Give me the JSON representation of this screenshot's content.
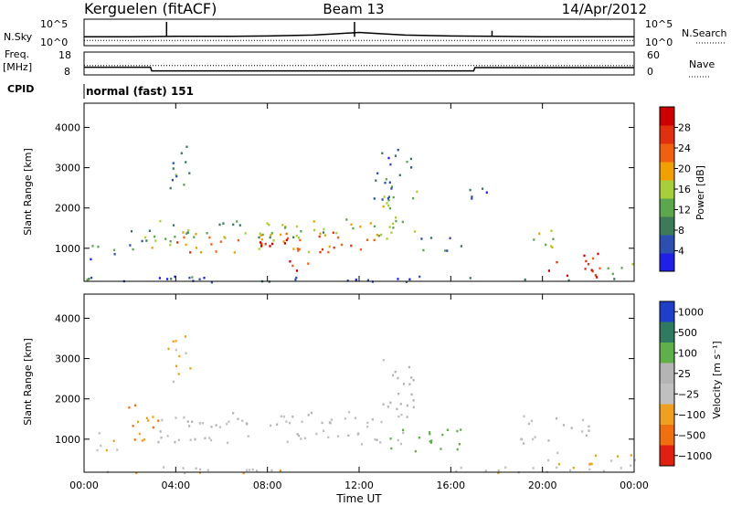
{
  "header": {
    "station": "Kerguelen (fitACF)",
    "beam": "Beam 13",
    "date": "14/Apr/2012"
  },
  "colors": {
    "power_scale": [
      "#1f1fe6",
      "#2d4fb0",
      "#3d7a57",
      "#5ca64e",
      "#a6cf3a",
      "#f0a000",
      "#f06010",
      "#e03010",
      "#cc0000"
    ],
    "velocity_scale": [
      "#1f3fc8",
      "#2f7a60",
      "#5fb04a",
      "#b4b4b4",
      "#c0c0c0",
      "#f0a020",
      "#f07010",
      "#e02010"
    ],
    "groundscatter": "#bebebe"
  },
  "chart_data": [
    {
      "type": "line",
      "panel": "status-nsky-nsearch",
      "left_label": "N.Sky",
      "right_label": "N.Search",
      "left_ticks": [
        "10^5",
        "10^0"
      ],
      "right_ticks": [
        "10^5",
        "10^0"
      ],
      "series": [
        {
          "name": "N.Sky",
          "style": "solid",
          "x": [
            0,
            2,
            4,
            6,
            8,
            10,
            11,
            12,
            13,
            14,
            16,
            18,
            20,
            22,
            24
          ],
          "y": [
            1.6,
            1.6,
            1.7,
            1.7,
            1.8,
            2.0,
            2.3,
            2.6,
            2.3,
            2.0,
            1.8,
            1.7,
            1.6,
            1.6,
            1.6
          ]
        },
        {
          "name": "N.Search",
          "style": "dotted",
          "x": [
            0,
            24
          ],
          "y": [
            0.8,
            0.8
          ]
        }
      ],
      "spikes": [
        {
          "x": 3.6,
          "y": 5
        },
        {
          "x": 11.8,
          "y": 5
        },
        {
          "x": 17.8,
          "y": 3
        }
      ]
    },
    {
      "type": "line",
      "panel": "status-freq-nave",
      "left_label": "Freq.",
      "left_unit": "[MHz]",
      "right_label": "Nave",
      "left_ticks": [
        "18",
        "8"
      ],
      "right_ticks": [
        "60",
        "0"
      ],
      "ylim_left": [
        8,
        18
      ],
      "ylim_right": [
        0,
        60
      ],
      "series": [
        {
          "name": "Freq.",
          "axis": "left",
          "style": "solid",
          "x": [
            0,
            2.9,
            2.95,
            17.0,
            17.05,
            24
          ],
          "y": [
            11.2,
            11.2,
            9.2,
            9.2,
            11.0,
            11.0
          ]
        },
        {
          "name": "Nave",
          "axis": "right",
          "style": "dotted",
          "x": [
            0,
            24
          ],
          "y": [
            25,
            25
          ]
        }
      ]
    },
    {
      "type": "table",
      "panel": "cpid",
      "label": "CPID",
      "value": "normal (fast) 151"
    },
    {
      "type": "heatmap",
      "panel": "power",
      "ylabel": "Slant Range [km]",
      "xlim": [
        0,
        24
      ],
      "ylim": [
        180,
        4600
      ],
      "yticks": [
        1000,
        2000,
        3000,
        4000
      ],
      "colorbar": {
        "label": "Power [dB]",
        "range": [
          0,
          32
        ],
        "ticks": [
          4,
          8,
          12,
          16,
          20,
          24,
          28
        ]
      },
      "regions": [
        {
          "t0": 0.2,
          "t1": 1.6,
          "r0": 750,
          "r1": 1150,
          "v": 7
        },
        {
          "t0": 1.8,
          "t1": 2.9,
          "r0": 900,
          "r1": 1500,
          "v": 10
        },
        {
          "t0": 2.4,
          "t1": 4.6,
          "r0": 950,
          "r1": 1450,
          "v": 15
        },
        {
          "t0": 3.0,
          "t1": 14.0,
          "r0": 1250,
          "r1": 1750,
          "v": 14
        },
        {
          "t0": 4.0,
          "t1": 13.0,
          "r0": 900,
          "r1": 1450,
          "v": 22
        },
        {
          "t0": 6.0,
          "t1": 11.0,
          "r0": 950,
          "r1": 1250,
          "v": 28
        },
        {
          "t0": 8.5,
          "t1": 9.8,
          "r0": 450,
          "r1": 800,
          "v": 26
        },
        {
          "t0": 13.0,
          "t1": 14.5,
          "r0": 1400,
          "r1": 2600,
          "v": 16
        },
        {
          "t0": 12.5,
          "t1": 14.3,
          "r0": 2200,
          "r1": 3500,
          "v": 8
        },
        {
          "t0": 14.5,
          "t1": 16.5,
          "r0": 900,
          "r1": 1300,
          "v": 6
        },
        {
          "t0": 3.5,
          "t1": 4.6,
          "r0": 2400,
          "r1": 3600,
          "v": 10
        },
        {
          "t0": 16.8,
          "t1": 17.6,
          "r0": 1900,
          "r1": 2700,
          "v": 6
        },
        {
          "t0": 19.0,
          "t1": 20.5,
          "r0": 950,
          "r1": 1500,
          "v": 15
        },
        {
          "t0": 20.0,
          "t1": 22.5,
          "r0": 300,
          "r1": 950,
          "v": 26
        },
        {
          "t0": 22.5,
          "t1": 24.0,
          "r0": 300,
          "r1": 650,
          "v": 14
        },
        {
          "t0": 0.0,
          "t1": 24.0,
          "r0": 180,
          "r1": 330,
          "v": 6
        }
      ]
    },
    {
      "type": "heatmap",
      "panel": "velocity",
      "ylabel": "Slant Range [km]",
      "xlabel": "Time UT",
      "xlim": [
        0,
        24
      ],
      "ylim": [
        180,
        4600
      ],
      "xticks": [
        "00:00",
        "04:00",
        "08:00",
        "12:00",
        "16:00",
        "20:00",
        "00:00"
      ],
      "yticks": [
        1000,
        2000,
        3000,
        4000
      ],
      "colorbar": {
        "label": "Velocity [m s⁻¹]",
        "ticks": [
          "1000",
          "500",
          "100",
          "25",
          "−25",
          "−100",
          "−500",
          "−1000"
        ]
      },
      "regions": [
        {
          "t0": 0.2,
          "t1": 1.6,
          "r0": 700,
          "r1": 1200,
          "v": -40
        },
        {
          "t0": 1.8,
          "t1": 3.2,
          "r0": 800,
          "r1": 1900,
          "v": -300
        },
        {
          "t0": 3.0,
          "t1": 14.0,
          "r0": 900,
          "r1": 1700,
          "v": 0
        },
        {
          "t0": 13.2,
          "t1": 16.5,
          "r0": 700,
          "r1": 1300,
          "v": 150
        },
        {
          "t0": 13.0,
          "t1": 14.6,
          "r0": 1500,
          "r1": 3000,
          "v": 20
        },
        {
          "t0": 3.5,
          "t1": 4.6,
          "r0": 2400,
          "r1": 3600,
          "v": -80
        },
        {
          "t0": 19.0,
          "t1": 22.0,
          "r0": 900,
          "r1": 1600,
          "v": 0
        },
        {
          "t0": 20.0,
          "t1": 24.0,
          "r0": 300,
          "r1": 700,
          "v": -60
        },
        {
          "t0": 0.0,
          "t1": 24.0,
          "r0": 180,
          "r1": 330,
          "v": -40
        }
      ]
    }
  ]
}
